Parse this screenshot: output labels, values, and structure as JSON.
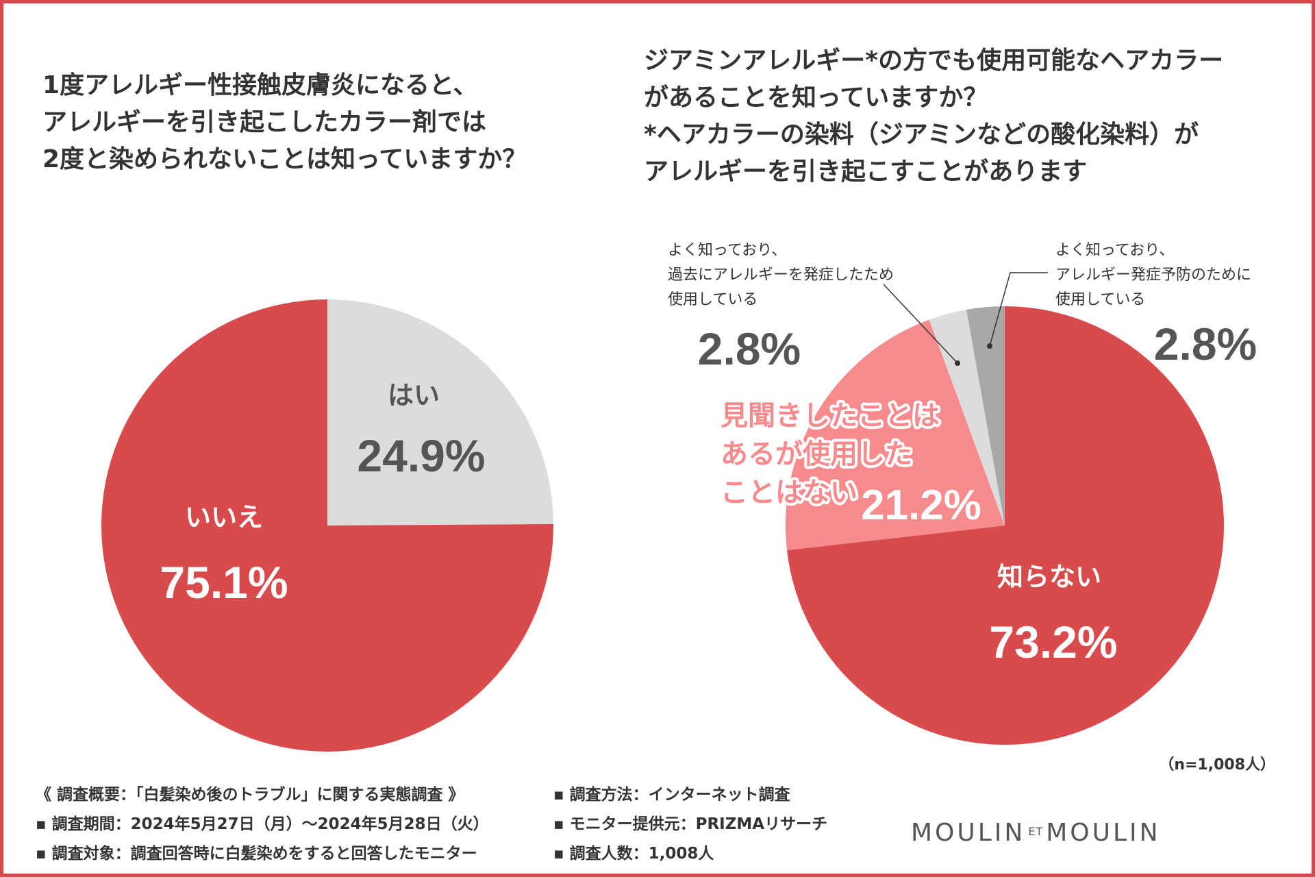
{
  "chart_data": [
    {
      "type": "pie",
      "title_lines": [
        "1度アレルギー性接触皮膚炎になると、",
        "アレルギーを引き起こしたカラー剤では",
        "2度と染められないことは知っていますか？"
      ],
      "slices": [
        {
          "label": "はい",
          "value": 24.9,
          "display": "24.9%",
          "color": "#dcdcdc"
        },
        {
          "label": "いいえ",
          "value": 75.1,
          "display": "75.1%",
          "color": "#d94a4c"
        }
      ]
    },
    {
      "type": "pie",
      "title_lines": [
        "ジアミンアレルギー*の方でも使用可能なヘアカラー",
        "があることを知っていますか？",
        "*ヘアカラーの染料（ジアミンなどの酸化染料）が",
        "アレルギーを引き起こすことがあります"
      ],
      "slices": [
        {
          "label": "知らない",
          "value": 73.2,
          "display": "73.2%",
          "color": "#d94a4c"
        },
        {
          "label_lines": [
            "見聞きしたことは",
            "あるが使用した",
            "ことはない"
          ],
          "value": 21.2,
          "display": "21.2%",
          "color": "#f78a8c"
        },
        {
          "label_lines": [
            "よく知っており、",
            "過去にアレルギーを発症したため",
            "使用している"
          ],
          "value": 2.8,
          "display": "2.8%",
          "color": "#dcdcdc"
        },
        {
          "label_lines": [
            "よく知っており、",
            "アレルギー発症予防のために",
            "使用している"
          ],
          "value": 2.8,
          "display": "2.8%",
          "color": "#a8a8a8"
        }
      ],
      "sample_size": "（n=1,008人）"
    }
  ],
  "footer": {
    "left": [
      "《 調査概要：「白髪染め後のトラブル」に関する実態調査 》",
      "▪ 調査期間：2024年5月27日（月）〜2024年5月28日（火）",
      "▪ 調査対象：調査回答時に白髪染めをすると回答したモニター"
    ],
    "right": [
      "▪ 調査方法：インターネット調査",
      "▪ モニター提供元：PRIZMAリサーチ",
      "▪ 調査人数：1,008人"
    ]
  },
  "brand": {
    "left": "MOULIN",
    "mid": "ET",
    "right": "MOULIN"
  },
  "colors": {
    "accent": "#d94a4c",
    "light": "#f78a8c",
    "grey": "#dcdcdc",
    "dark_grey": "#a8a8a8",
    "text": "#333333"
  }
}
